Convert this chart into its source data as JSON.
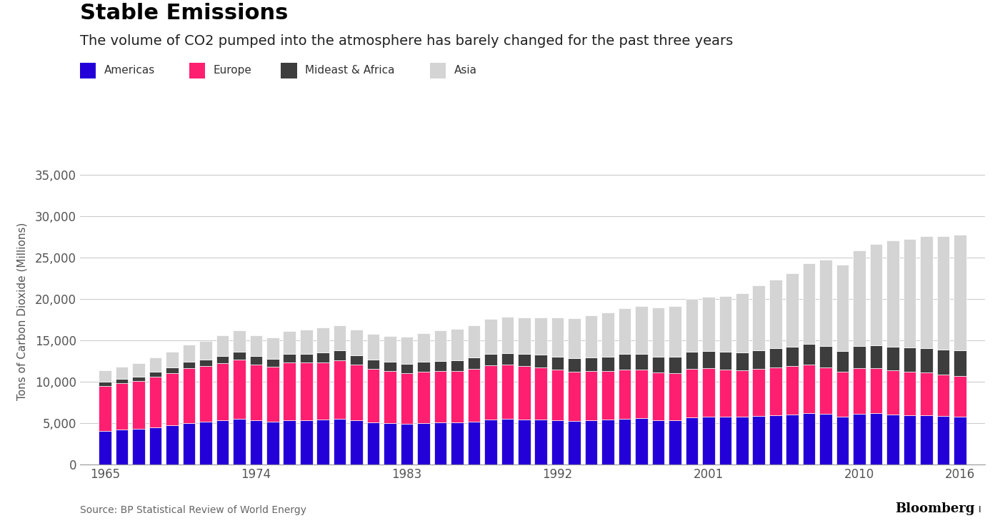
{
  "title": "Stable Emissions",
  "subtitle": "The volume of CO2 pumped into the atmosphere has barely changed for the past three years",
  "source": "Source: BP Statistical Review of World Energy",
  "ylabel": "Tons of Carbon Dioxide (Millions)",
  "years": [
    1965,
    1966,
    1967,
    1968,
    1969,
    1970,
    1971,
    1972,
    1973,
    1974,
    1975,
    1976,
    1977,
    1978,
    1979,
    1980,
    1981,
    1982,
    1983,
    1984,
    1985,
    1986,
    1987,
    1988,
    1989,
    1990,
    1991,
    1992,
    1993,
    1994,
    1995,
    1996,
    1997,
    1998,
    1999,
    2000,
    2001,
    2002,
    2003,
    2004,
    2005,
    2006,
    2007,
    2008,
    2009,
    2010,
    2011,
    2012,
    2013,
    2014,
    2015,
    2016
  ],
  "americas": [
    4054,
    4215,
    4305,
    4512,
    4730,
    5040,
    5187,
    5378,
    5555,
    5330,
    5185,
    5388,
    5388,
    5456,
    5570,
    5360,
    5110,
    5010,
    4918,
    5040,
    5088,
    5100,
    5230,
    5450,
    5524,
    5472,
    5483,
    5357,
    5265,
    5374,
    5447,
    5555,
    5602,
    5397,
    5351,
    5730,
    5792,
    5753,
    5753,
    5895,
    5983,
    6085,
    6238,
    6133,
    5827,
    6133,
    6196,
    6046,
    5990,
    5986,
    5876,
    5769
  ],
  "europe": [
    5476,
    5644,
    5780,
    6082,
    6364,
    6622,
    6690,
    6904,
    7094,
    6793,
    6607,
    6924,
    6924,
    6924,
    7000,
    6710,
    6455,
    6299,
    6124,
    6222,
    6222,
    6222,
    6348,
    6530,
    6530,
    6418,
    6232,
    6124,
    5960,
    5904,
    5849,
    5960,
    5904,
    5741,
    5741,
    5849,
    5849,
    5741,
    5633,
    5687,
    5741,
    5795,
    5849,
    5633,
    5363,
    5525,
    5471,
    5309,
    5201,
    5147,
    5038,
    4930
  ],
  "mideast_africa": [
    480,
    528,
    576,
    624,
    672,
    768,
    816,
    864,
    960,
    960,
    1008,
    1056,
    1104,
    1152,
    1200,
    1152,
    1152,
    1152,
    1152,
    1200,
    1248,
    1296,
    1344,
    1392,
    1440,
    1488,
    1536,
    1584,
    1632,
    1680,
    1728,
    1824,
    1872,
    1920,
    1968,
    2016,
    2064,
    2112,
    2160,
    2256,
    2352,
    2400,
    2496,
    2592,
    2544,
    2688,
    2784,
    2880,
    2928,
    2976,
    3024,
    3072
  ],
  "asia": [
    1350,
    1480,
    1600,
    1700,
    1900,
    2100,
    2220,
    2500,
    2650,
    2550,
    2600,
    2750,
    2900,
    3000,
    3100,
    3100,
    3050,
    3100,
    3250,
    3450,
    3650,
    3750,
    3900,
    4200,
    4350,
    4400,
    4550,
    4700,
    4800,
    5050,
    5350,
    5600,
    5800,
    5950,
    6100,
    6400,
    6550,
    6750,
    7200,
    7800,
    8250,
    8850,
    9750,
    10400,
    10450,
    11550,
    12200,
    12850,
    13100,
    13500,
    13700,
    14000
  ],
  "colors": {
    "americas": "#2400d8",
    "europe": "#ff1f70",
    "mideast_africa": "#3d3d3d",
    "asia": "#d4d4d4"
  },
  "ylim": [
    0,
    37000
  ],
  "yticks": [
    0,
    5000,
    10000,
    15000,
    20000,
    25000,
    30000,
    35000
  ],
  "xticks": [
    1965,
    1974,
    1983,
    1992,
    2001,
    2010,
    2016
  ],
  "background_color": "#ffffff",
  "title_fontsize": 22,
  "subtitle_fontsize": 14,
  "tick_fontsize": 12,
  "bar_edge_color": "#ffffff",
  "bar_linewidth": 0.5
}
